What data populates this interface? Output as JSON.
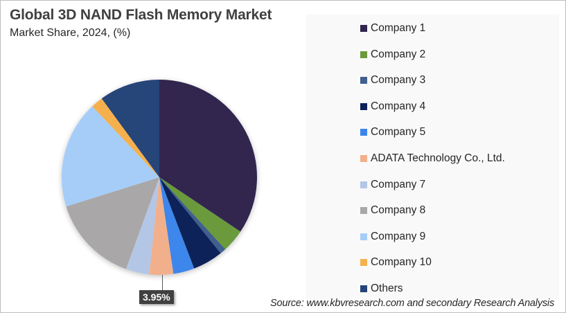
{
  "header": {
    "title": "Global 3D NAND Flash Memory Market",
    "subtitle": "Market Share, 2024, (%)"
  },
  "data_label": "3.95%",
  "source": "Source: www.kbvresearch.com and secondary Research Analysis",
  "legend": {
    "items": [
      {
        "label": "Company 1",
        "color": "#31254f"
      },
      {
        "label": "Company 2",
        "color": "#6a9a3b"
      },
      {
        "label": "Company 3",
        "color": "#3f5f8f"
      },
      {
        "label": "Company 4",
        "color": "#0d2158"
      },
      {
        "label": "Company 5",
        "color": "#3c86eb"
      },
      {
        "label": "ADATA Technology Co., Ltd.",
        "color": "#f1b08b"
      },
      {
        "label": "Company 7",
        "color": "#b4c6e6"
      },
      {
        "label": "Company 8",
        "color": "#a9a7a7"
      },
      {
        "label": "Company 9",
        "color": "#a6cdf7"
      },
      {
        "label": "Company 10",
        "color": "#f5b04e"
      },
      {
        "label": "Others",
        "color": "#264478"
      }
    ]
  },
  "chart_data": {
    "type": "pie",
    "title": "Global 3D NAND Flash Memory Market",
    "subtitle": "Market Share, 2024, (%)",
    "categories": [
      "Company 1",
      "Company 2",
      "Company 3",
      "Company 4",
      "Company 5",
      "ADATA Technology Co., Ltd.",
      "Company 7",
      "Company 8",
      "Company 9",
      "Company 10",
      "Others"
    ],
    "values": [
      34.4,
      3.8,
      1.0,
      5.0,
      3.5,
      3.95,
      3.9,
      14.6,
      17.8,
      2.0,
      10.05
    ],
    "colors": [
      "#31254f",
      "#6a9a3b",
      "#3f5f8f",
      "#0d2158",
      "#3c86eb",
      "#f1b08b",
      "#b4c6e6",
      "#a9a7a7",
      "#a6cdf7",
      "#f5b04e",
      "#264478"
    ],
    "start_angle_deg": 0,
    "direction": "clockwise",
    "data_labels": [
      {
        "category": "ADATA Technology Co., Ltd.",
        "text": "3.95%"
      }
    ],
    "legend_position": "right",
    "unit": "%"
  }
}
